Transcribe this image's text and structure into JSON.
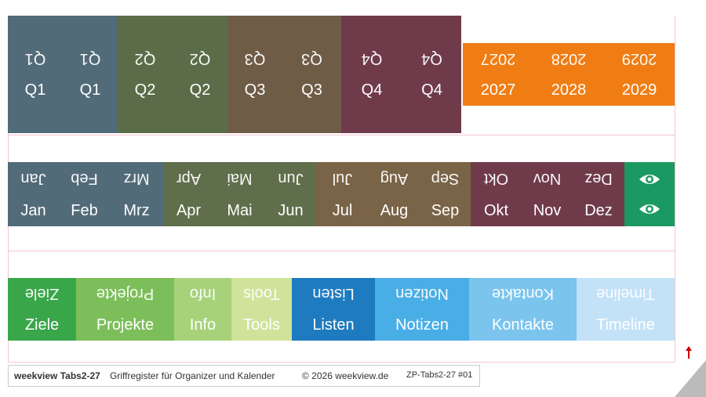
{
  "quarters": [
    "Q1",
    "Q1",
    "Q2",
    "Q2",
    "Q3",
    "Q3",
    "Q4",
    "Q4"
  ],
  "years": [
    "2027",
    "2028",
    "2029"
  ],
  "months": [
    "Jan",
    "Feb",
    "Mrz",
    "Apr",
    "Mai",
    "Jun",
    "Jul",
    "Aug",
    "Sep",
    "Okt",
    "Nov",
    "Dez"
  ],
  "sections": [
    "Ziele",
    "Projekte",
    "Info",
    "Tools",
    "Listen",
    "Notizen",
    "Kontakte",
    "Timeline"
  ],
  "footer": {
    "brand": "weekview Tabs2-27",
    "description": "Griffregister für Organizer und Kalender",
    "copyright": "© 2026 weekview.de",
    "code": "ZP-Tabs2-27 #01"
  }
}
